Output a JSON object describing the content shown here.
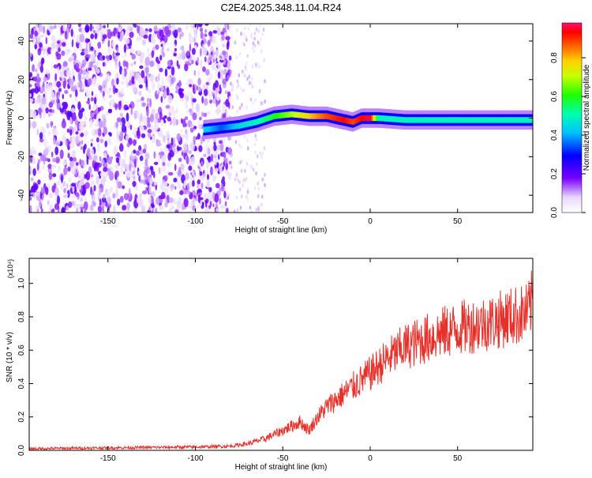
{
  "title": "C2E4.2025.348.11.04.R24",
  "chart_data": [
    {
      "type": "heatmap",
      "xlabel": "Height of straight line (km)",
      "ylabel": "Frequency (Hz)",
      "xlim": [
        -195,
        93
      ],
      "ylim": [
        -49,
        49
      ],
      "xticks": [
        -150,
        -100,
        -50,
        0,
        50
      ],
      "yticks": [
        -40,
        -20,
        0,
        20,
        40
      ],
      "colorbar": {
        "label": "Normalized spectral amplitude",
        "range": [
          0,
          0.98
        ],
        "ticks": [
          0.0,
          0.2,
          0.4,
          0.6,
          0.8
        ],
        "tick_labels": [
          "0.0",
          "0.2",
          "0.4",
          "0.6",
          "0.8"
        ]
      },
      "ridge": {
        "description_x": [
          -95,
          -85,
          -75,
          -65,
          -55,
          -45,
          -35,
          -25,
          -15,
          -10,
          -5,
          0,
          5,
          20,
          40,
          60,
          80,
          93
        ],
        "frequency": [
          -6,
          -5,
          -4,
          -2,
          1,
          2,
          1,
          1,
          -1,
          -2,
          0,
          0,
          0,
          -1,
          -1,
          -1,
          -1,
          -1
        ],
        "amplitude": [
          0.45,
          0.35,
          0.45,
          0.5,
          0.6,
          0.7,
          0.8,
          0.9,
          0.95,
          0.9,
          0.95,
          0.98,
          0.5,
          0.5,
          0.5,
          0.5,
          0.5,
          0.5
        ]
      },
      "noise_region_x": [
        -195,
        -80
      ]
    },
    {
      "type": "line",
      "xlabel": "Height of straight line (km)",
      "ylabel": "SNR (10 * v/v)",
      "y_multiplier": "(x10⁴)",
      "xlim": [
        -195,
        93
      ],
      "ylim": [
        0,
        1.15
      ],
      "xticks": [
        -150,
        -100,
        -50,
        0,
        50
      ],
      "yticks": [
        0.0,
        0.2,
        0.4,
        0.6,
        0.8,
        1.0
      ],
      "ytick_labels": [
        "0.0",
        "0.2",
        "0.4",
        "0.6",
        "0.8",
        "1.0"
      ],
      "series": [
        {
          "name": "SNR",
          "color": "#e8302a",
          "x": [
            -195,
            -150,
            -100,
            -80,
            -70,
            -60,
            -50,
            -40,
            -35,
            -30,
            -25,
            -20,
            -10,
            0,
            10,
            20,
            30,
            40,
            50,
            60,
            70,
            80,
            90,
            93
          ],
          "y": [
            0.01,
            0.015,
            0.02,
            0.025,
            0.04,
            0.07,
            0.12,
            0.17,
            0.12,
            0.2,
            0.26,
            0.3,
            0.38,
            0.46,
            0.55,
            0.62,
            0.66,
            0.7,
            0.73,
            0.75,
            0.77,
            0.8,
            0.82,
            0.9
          ]
        }
      ]
    }
  ]
}
